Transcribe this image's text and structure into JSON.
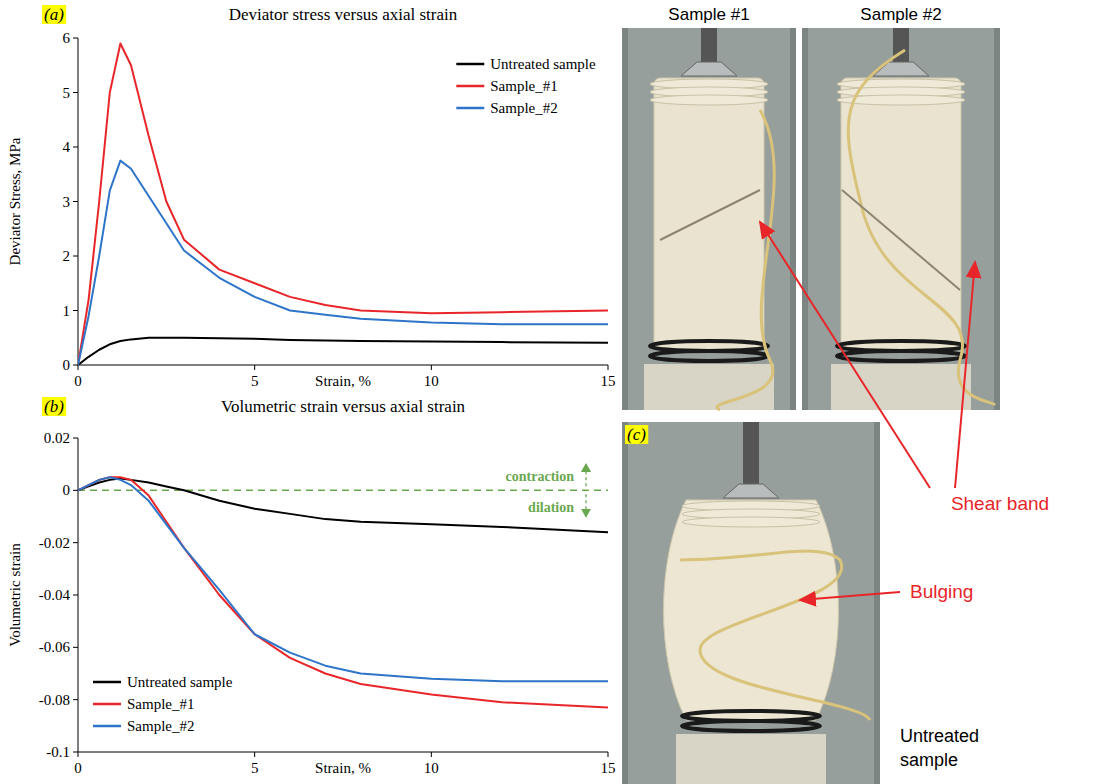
{
  "chart_data": [
    {
      "type": "line",
      "panel": "(a)",
      "title": "Deviator stress versus axial strain",
      "x_label": "Strain, %",
      "y_label": "Deviator Stress, MPa",
      "x": [
        0,
        0.3,
        0.6,
        0.9,
        1.2,
        1.5,
        2,
        2.5,
        3,
        4,
        5,
        6,
        7,
        8,
        10,
        12,
        15
      ],
      "xlim": [
        0,
        15
      ],
      "xticks": [
        0,
        5,
        10,
        15
      ],
      "ylim": [
        0,
        6
      ],
      "yticks": [
        0,
        1,
        2,
        3,
        4,
        5,
        6
      ],
      "grid": false,
      "legend": "upper right",
      "series": [
        {
          "name": "Untreated sample",
          "color": "#000000",
          "values": [
            0,
            0.15,
            0.28,
            0.38,
            0.44,
            0.47,
            0.5,
            0.5,
            0.5,
            0.49,
            0.48,
            0.46,
            0.45,
            0.44,
            0.43,
            0.42,
            0.41
          ]
        },
        {
          "name": "Sample_#1",
          "color": "#e8262a",
          "values": [
            0,
            1.2,
            3.0,
            5.0,
            5.9,
            5.5,
            4.2,
            3.0,
            2.3,
            1.75,
            1.5,
            1.25,
            1.1,
            1.0,
            0.95,
            0.97,
            1.0
          ]
        },
        {
          "name": "Sample_#2",
          "color": "#2e75c9",
          "values": [
            0,
            0.9,
            2.0,
            3.2,
            3.75,
            3.6,
            3.1,
            2.6,
            2.1,
            1.6,
            1.25,
            1.0,
            0.92,
            0.85,
            0.78,
            0.75,
            0.75
          ]
        }
      ]
    },
    {
      "type": "line",
      "panel": "(b)",
      "title": "Volumetric strain versus axial strain",
      "x_label": "Strain, %",
      "y_label": "Volumetric strain",
      "x": [
        0,
        0.3,
        0.6,
        0.9,
        1.2,
        1.5,
        2,
        2.5,
        3,
        4,
        5,
        6,
        7,
        8,
        10,
        12,
        15
      ],
      "xlim": [
        0,
        15
      ],
      "xticks": [
        0,
        5,
        10,
        15
      ],
      "ylim": [
        -0.1,
        0.02
      ],
      "yticks": [
        -0.1,
        -0.08,
        -0.06,
        -0.04,
        -0.02,
        0,
        0.02
      ],
      "grid": false,
      "legend": "lower left",
      "reference_line": 0,
      "annotations": [
        "contraction",
        "dilation"
      ],
      "series": [
        {
          "name": "Untreated sample",
          "color": "#000000",
          "values": [
            0,
            0.0015,
            0.003,
            0.004,
            0.0045,
            0.004,
            0.003,
            0.0015,
            0,
            -0.004,
            -0.007,
            -0.009,
            -0.011,
            -0.012,
            -0.013,
            -0.014,
            -0.016
          ]
        },
        {
          "name": "Sample_#1",
          "color": "#e8262a",
          "values": [
            0,
            0.002,
            0.004,
            0.005,
            0.005,
            0.004,
            -0.002,
            -0.012,
            -0.022,
            -0.04,
            -0.055,
            -0.064,
            -0.07,
            -0.074,
            -0.078,
            -0.081,
            -0.083
          ]
        },
        {
          "name": "Sample_#2",
          "color": "#2e75c9",
          "values": [
            0,
            0.002,
            0.004,
            0.005,
            0.004,
            0.002,
            -0.004,
            -0.013,
            -0.022,
            -0.038,
            -0.055,
            -0.062,
            -0.067,
            -0.07,
            -0.072,
            -0.073,
            -0.073
          ]
        }
      ]
    }
  ],
  "photos": {
    "sample_1_label": "Sample #1",
    "sample_2_label": "Sample #2",
    "panel": "(c)",
    "shear_band": "Shear band",
    "bulging": "Bulging",
    "untreated": "Untreated sample"
  }
}
